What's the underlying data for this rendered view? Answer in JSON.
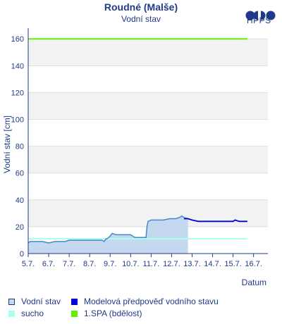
{
  "header": {
    "title": "Roudné (Malše)",
    "subtitle": "Vodní stav",
    "brand": "HPPS"
  },
  "legend": {
    "items": [
      {
        "label": "Vodní stav",
        "color": "#c4d8f0",
        "border": "#1f3a8a"
      },
      {
        "label": "Modelová předpověď vodního stavu",
        "color": "#0000dd",
        "border": "#0000dd"
      },
      {
        "label": "sucho",
        "color": "#aaffee",
        "border": "#aaffee"
      },
      {
        "label": "1.SPA (bdělost)",
        "color": "#66ee00",
        "border": "#66ee00"
      }
    ]
  },
  "chart_data": {
    "type": "line",
    "xlabel": "Datum",
    "ylabel": "Vodní stav [cm]",
    "ylim": [
      0,
      168
    ],
    "yticks": [
      0,
      20,
      40,
      60,
      80,
      100,
      120,
      140,
      160
    ],
    "xlim": [
      5.0,
      16.7
    ],
    "xticks": [
      5,
      6,
      7,
      8,
      9,
      10,
      11,
      12,
      13,
      14,
      15,
      16
    ],
    "xtick_labels": [
      "5.7.",
      "6.7.",
      "7.7.",
      "8.7.",
      "9.7.",
      "10.7.",
      "11.7.",
      "12.7.",
      "13.7.",
      "14.7.",
      "15.7.",
      "16.7."
    ],
    "grid": true,
    "series": [
      {
        "name": "Vodní stav",
        "color": "#4a86c8",
        "fill": "#c4d8f0",
        "x": [
          5.0,
          5.1,
          5.4,
          5.7,
          6.0,
          6.3,
          6.5,
          6.8,
          7.0,
          7.2,
          7.6,
          8.0,
          8.3,
          8.6,
          8.7,
          8.8,
          8.85,
          9.0,
          9.1,
          9.3,
          9.5,
          9.8,
          10.0,
          10.2,
          10.5,
          10.7,
          10.75,
          10.8,
          10.85,
          11.0,
          11.3,
          11.6,
          11.9,
          12.2,
          12.4,
          12.5,
          12.6,
          12.8
        ],
        "values": [
          8,
          9,
          9,
          9,
          8,
          9,
          9,
          9,
          10,
          10,
          10,
          10,
          10,
          10,
          9,
          11,
          11,
          13,
          15,
          14,
          14,
          14,
          14,
          12,
          12,
          12,
          12,
          20,
          24,
          25,
          25,
          25,
          26,
          26,
          27,
          28,
          27,
          26
        ]
      },
      {
        "name": "Modelová předpověď vodního stavu",
        "color": "#0000dd",
        "x": [
          12.6,
          12.8,
          13.0,
          13.3,
          13.6,
          14.0,
          14.4,
          14.8,
          15.0,
          15.1,
          15.3,
          15.7
        ],
        "values": [
          26,
          26,
          25,
          24,
          24,
          24,
          24,
          24,
          24,
          25,
          24,
          24
        ]
      },
      {
        "name": "sucho",
        "color": "#aaffee",
        "x": [
          5.0,
          15.7
        ],
        "values": [
          11,
          11
        ]
      },
      {
        "name": "1.SPA (bdělost)",
        "color": "#66ee00",
        "x": [
          5.0,
          15.7
        ],
        "values": [
          160,
          160
        ]
      }
    ]
  }
}
